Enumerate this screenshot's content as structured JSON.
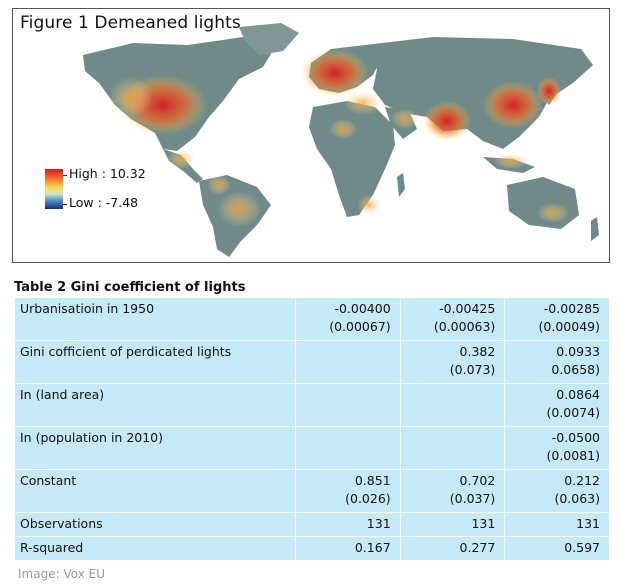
{
  "figure": {
    "title": "Figure 1 Demeaned lights",
    "legend": {
      "high": "High : 10.32",
      "low": "Low : -7.48"
    },
    "colors": {
      "land": "#6f8a88",
      "ocean": "#ffffff",
      "high": "#d7191c",
      "mid": "#fdd34a",
      "low": "#1a2f7a"
    }
  },
  "table": {
    "title": "Table 2 Gini coefficient of lights",
    "rows": [
      {
        "label": "Urbanisatioin in 1950",
        "c1": "-0.00400",
        "c1se": "(0.00067)",
        "c2": "-0.00425",
        "c2se": "(0.00063)",
        "c3": "-0.00285",
        "c3se": "(0.00049)"
      },
      {
        "label": "Gini cofficient of perdicated lights",
        "c1": "",
        "c1se": "",
        "c2": "0.382",
        "c2se": "(0.073)",
        "c3": "0.0933",
        "c3se": "0.0658)"
      },
      {
        "label": "In (land area)",
        "c1": "",
        "c1se": "",
        "c2": "",
        "c2se": "",
        "c3": "0.0864",
        "c3se": "(0.0074)"
      },
      {
        "label": "In (population in 2010)",
        "c1": "",
        "c1se": "",
        "c2": "",
        "c2se": "",
        "c3": "-0.0500",
        "c3se": "(0.0081)"
      },
      {
        "label": "Constant",
        "c1": "0.851",
        "c1se": "(0.026)",
        "c2": "0.702",
        "c2se": "(0.037)",
        "c3": "0.212",
        "c3se": "(0.063)"
      },
      {
        "label": "Observations",
        "c1": "131",
        "c2": "131",
        "c3": "131"
      },
      {
        "label": "R-squared",
        "c1": "0.167",
        "c2": "0.277",
        "c3": "0.597"
      }
    ],
    "colors": {
      "cell": "#c6e9f8"
    }
  },
  "credit": "Image: Vox EU"
}
